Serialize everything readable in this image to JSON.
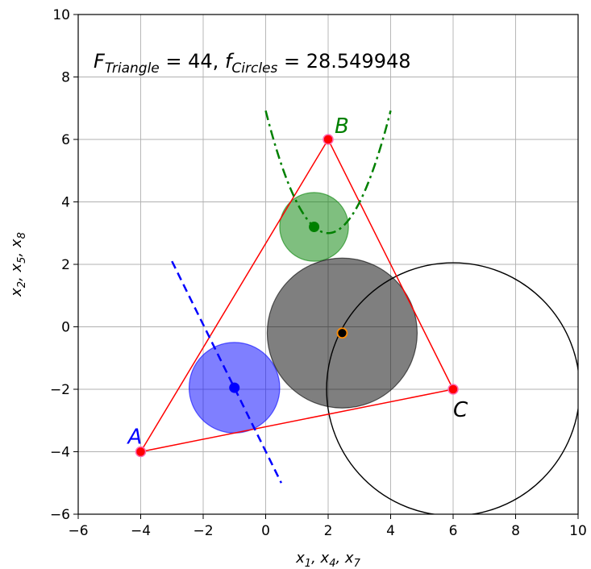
{
  "chart_data": {
    "type": "scatter",
    "xlim": [
      -6,
      10
    ],
    "ylim": [
      -6,
      10
    ],
    "x_ticks": [
      -6,
      -4,
      -2,
      0,
      2,
      4,
      6,
      8,
      10
    ],
    "y_ticks": [
      -6,
      -4,
      -2,
      0,
      2,
      4,
      6,
      8,
      10
    ],
    "grid": true,
    "xlabel": "x1, x4, x7",
    "ylabel": "x2, x5, x8",
    "annotation": {
      "F_label": "F",
      "F_sub": "Triangle",
      "F_value": " = 44, ",
      "f_label": "f",
      "f_sub": "Circles",
      "f_value": " = 28.549948"
    },
    "triangle": {
      "color": "#ff0000",
      "vertices": [
        {
          "name": "A",
          "x": -4,
          "y": -4,
          "label_color": "#0000ff"
        },
        {
          "name": "B",
          "x": 2,
          "y": 6,
          "label_color": "#008000"
        },
        {
          "name": "C",
          "x": 6,
          "y": -2,
          "label_color": "#000000"
        }
      ]
    },
    "circles": [
      {
        "name": "blue",
        "cx": -1.0,
        "cy": -1.95,
        "r": 1.45,
        "fill": "#0000ff",
        "opacity": 0.5,
        "center_color": "#0000ff"
      },
      {
        "name": "green",
        "cx": 1.55,
        "cy": 3.2,
        "r": 1.1,
        "fill": "#008000",
        "opacity": 0.5,
        "center_color": "#008000"
      },
      {
        "name": "gray",
        "cx": 2.45,
        "cy": -0.2,
        "r": 2.4,
        "fill": "#000000",
        "opacity": 0.5,
        "center_color": "#000000",
        "center_edge": "#ff8c00"
      },
      {
        "name": "outline",
        "cx": 6,
        "cy": -2,
        "r": 4.05,
        "stroke": "#000000"
      }
    ],
    "blue_line": {
      "color": "#0000ff",
      "points": [
        {
          "x": -3.0,
          "y": 2.1
        },
        {
          "x": 0.5,
          "y": -5.0
        }
      ]
    },
    "green_parabola": {
      "color": "#008000",
      "vertex_x": 2.0,
      "vertex_y": 3.0,
      "a": 0.98,
      "x_range": [
        0.0,
        4.0
      ]
    }
  }
}
